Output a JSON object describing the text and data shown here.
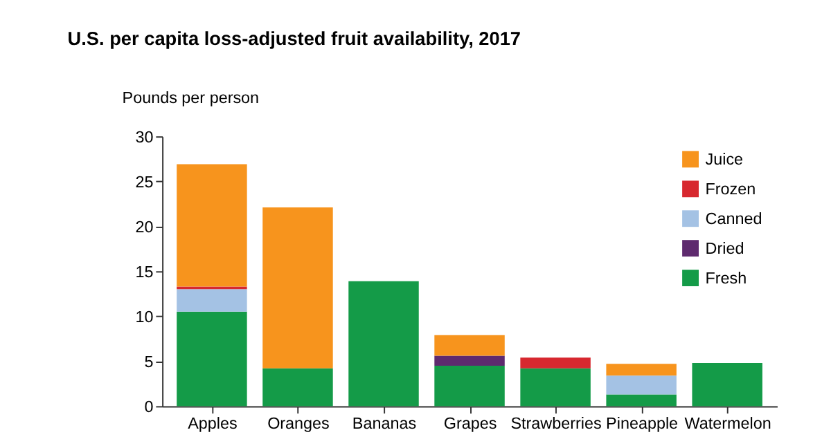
{
  "chart_data": {
    "type": "bar",
    "stacked": true,
    "title": "U.S. per capita loss-adjusted fruit availability, 2017",
    "ylabel": "Pounds per person",
    "categories": [
      "Apples",
      "Oranges",
      "Bananas",
      "Grapes",
      "Strawberries",
      "Pineapple",
      "Watermelon"
    ],
    "series": [
      {
        "name": "Fresh",
        "color": "#149b48",
        "values": [
          10.5,
          4.2,
          13.9,
          4.5,
          4.2,
          1.3,
          4.8
        ]
      },
      {
        "name": "Dried",
        "color": "#5e2a6e",
        "values": [
          null,
          null,
          null,
          1.1,
          null,
          null,
          null
        ]
      },
      {
        "name": "Canned",
        "color": "#a4c2e4",
        "values": [
          2.5,
          null,
          null,
          null,
          null,
          2.1,
          null
        ]
      },
      {
        "name": "Frozen",
        "color": "#d7282f",
        "values": [
          0.3,
          null,
          null,
          null,
          1.2,
          null,
          null
        ]
      },
      {
        "name": "Juice",
        "color": "#f7941d",
        "values": [
          13.6,
          17.9,
          null,
          2.3,
          null,
          1.3,
          null
        ]
      }
    ],
    "ylim": [
      0,
      30
    ],
    "yticks": [
      0,
      5,
      10,
      15,
      20,
      25,
      30
    ],
    "grid": false,
    "legend": "top right"
  }
}
